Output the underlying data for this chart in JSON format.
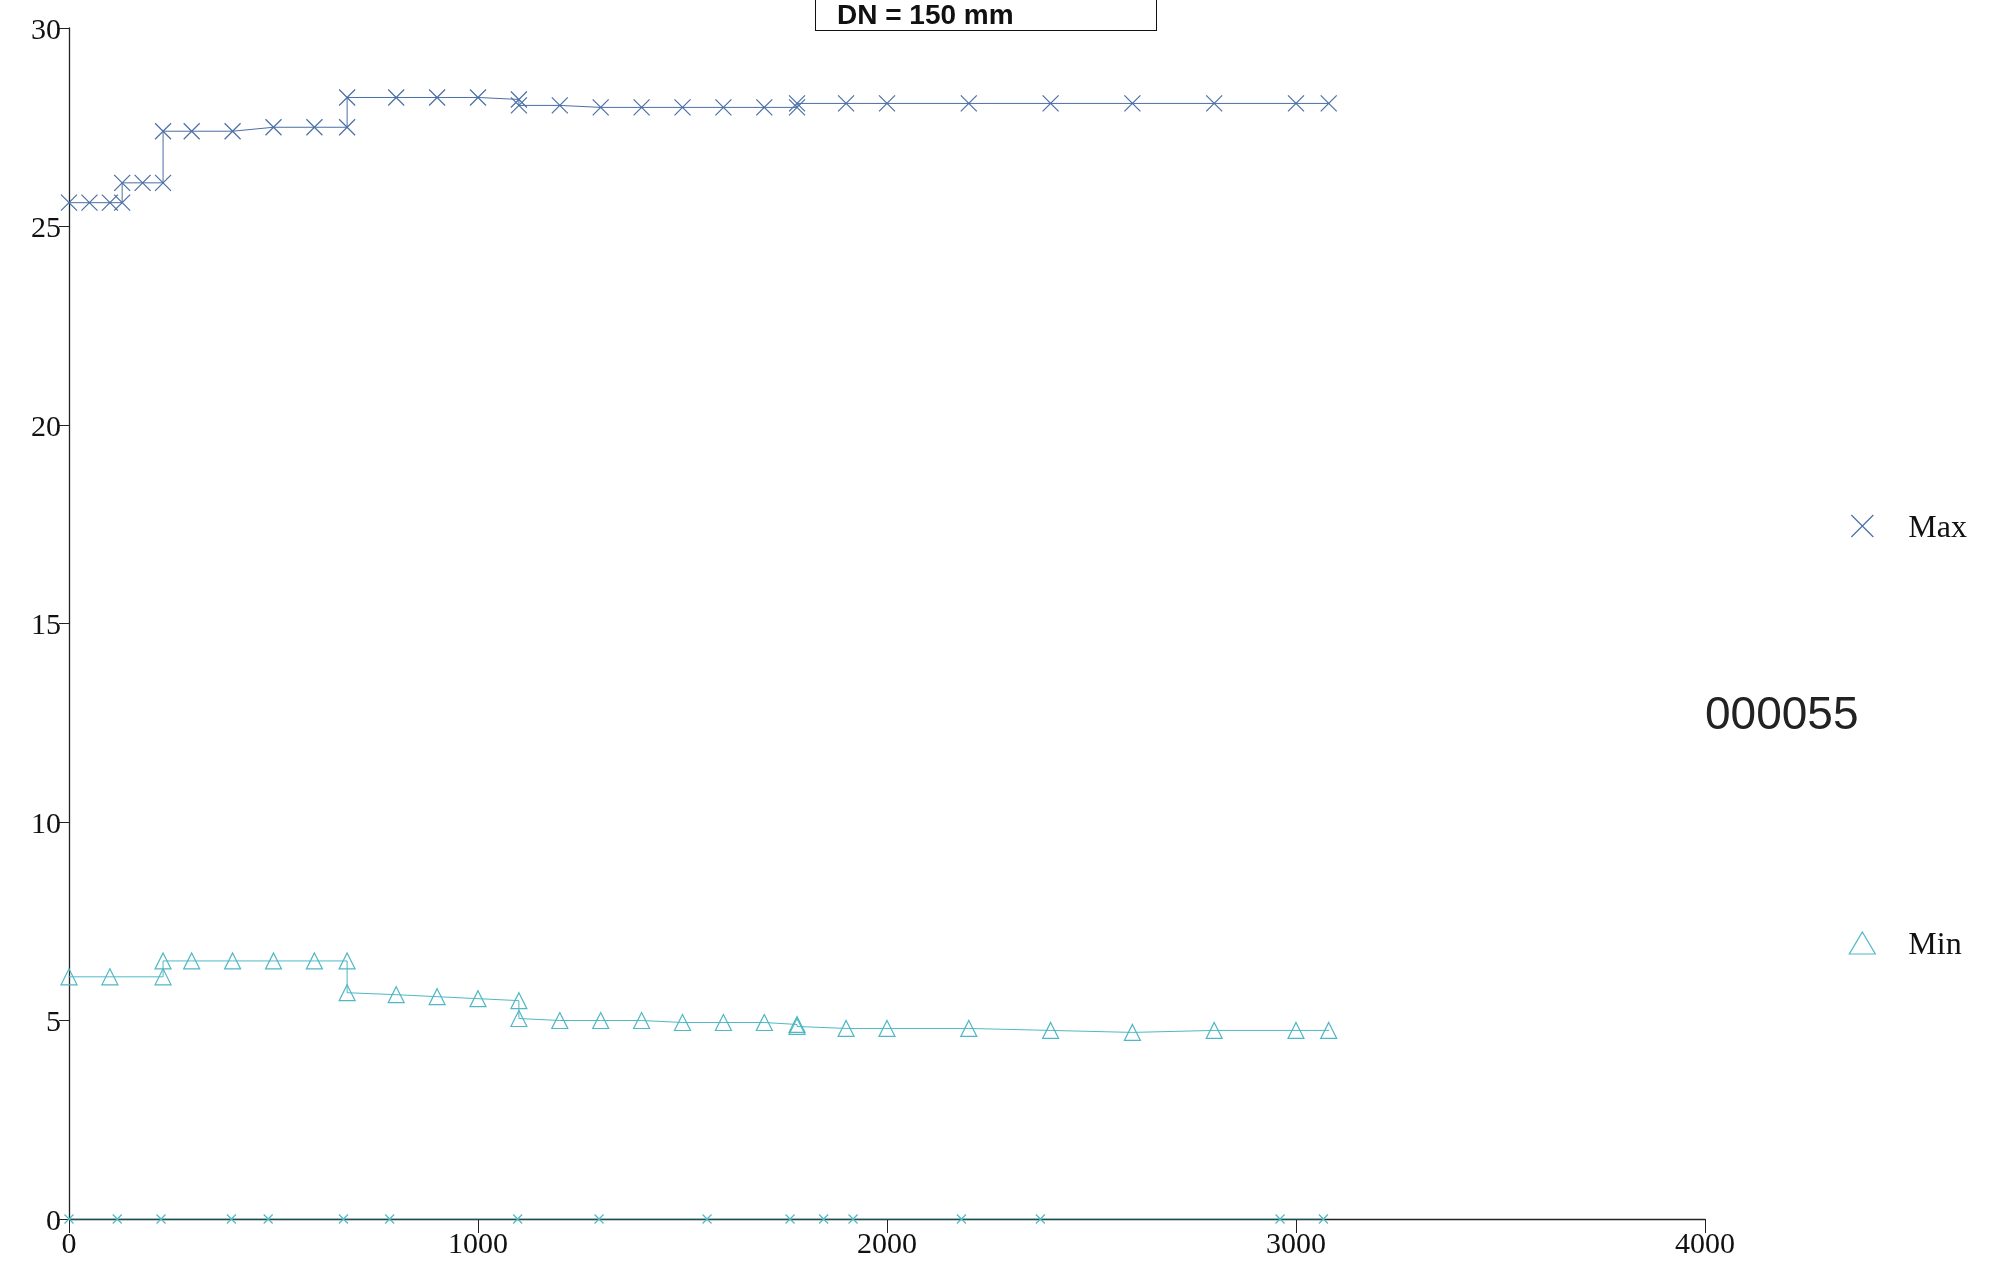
{
  "chart_data": {
    "type": "line",
    "annotations": [
      "DN = 150 mm",
      "000055"
    ],
    "xlim": [
      0,
      4000
    ],
    "xticks": [
      0,
      1000,
      2000,
      3000,
      4000
    ],
    "ylim": [
      0,
      30
    ],
    "yticks": [
      0,
      5,
      10,
      15,
      20,
      25,
      30
    ],
    "grid": false,
    "legend": "right",
    "marker": "cross",
    "series": [
      {
        "name": "Max",
        "color": "#4a6fa5",
        "x": [
          0,
          50,
          100,
          130,
          130,
          180,
          230,
          230,
          300,
          400,
          500,
          600,
          680,
          680,
          800,
          900,
          1000,
          1100,
          1100,
          1200,
          1300,
          1400,
          1500,
          1600,
          1700,
          1780,
          1780,
          1900,
          2000,
          2200,
          2400,
          2600,
          2800,
          3000,
          3080
        ],
        "values": [
          25.6,
          25.6,
          25.6,
          25.6,
          26.1,
          26.1,
          26.1,
          27.4,
          27.4,
          27.4,
          27.5,
          27.5,
          27.5,
          28.25,
          28.25,
          28.25,
          28.25,
          28.2,
          28.05,
          28.05,
          28.0,
          28.0,
          28.0,
          28.0,
          28.0,
          28.0,
          28.1,
          28.1,
          28.1,
          28.1,
          28.1,
          28.1,
          28.1,
          28.1,
          28.1
        ]
      },
      {
        "name": "Min",
        "color": "#4fb8c4",
        "marker": "triangle",
        "x": [
          0,
          100,
          230,
          230,
          300,
          400,
          500,
          600,
          680,
          680,
          800,
          900,
          1000,
          1100,
          1100,
          1200,
          1300,
          1400,
          1500,
          1600,
          1700,
          1780,
          1780,
          1900,
          2000,
          2200,
          2400,
          2600,
          2800,
          3000,
          3080
        ],
        "values": [
          6.1,
          6.1,
          6.1,
          6.5,
          6.5,
          6.5,
          6.5,
          6.5,
          6.5,
          5.7,
          5.65,
          5.6,
          5.55,
          5.5,
          5.05,
          5.0,
          5.0,
          5.0,
          4.95,
          4.95,
          4.95,
          4.9,
          4.85,
          4.8,
          4.8,
          4.8,
          4.75,
          4.7,
          4.75,
          4.75,
          4.75
        ]
      },
      {
        "color": "#4fb8c4",
        "x": [
          0,
          118,
          225,
          397,
          487,
          671,
          784,
          1097,
          1296,
          1560,
          1763,
          1845,
          1917,
          2182,
          2375,
          2961,
          3067
        ],
        "values": [
          0,
          0,
          0,
          0,
          0,
          0,
          0,
          0,
          0,
          0,
          0,
          0,
          0,
          0,
          0,
          0,
          0
        ]
      }
    ]
  }
}
